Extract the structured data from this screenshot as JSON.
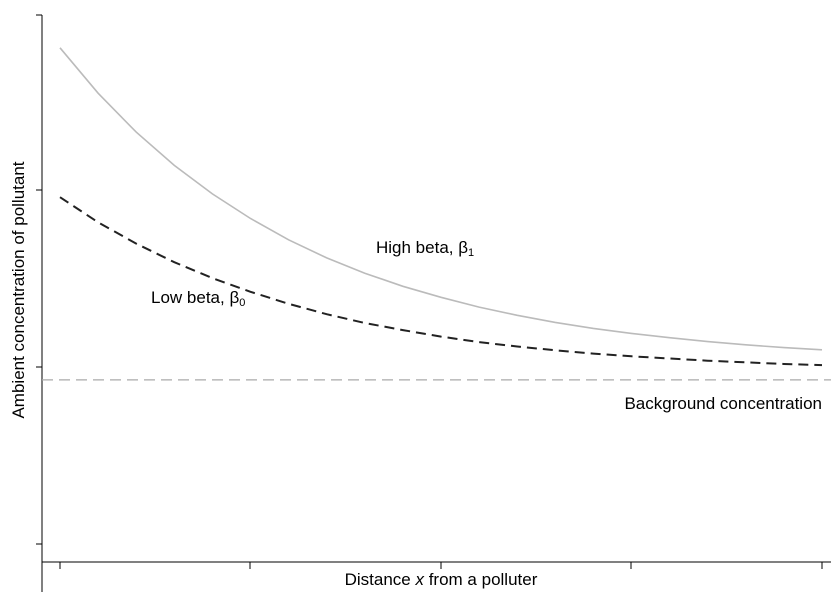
{
  "chart_data": {
    "type": "line",
    "xlabel": "Distance x from a polluter",
    "xlabel_parts": {
      "before": "Distance ",
      "var": "x",
      "after": " from a polluter"
    },
    "ylabel": "Ambient concentration of pollutant",
    "xlim": [
      0,
      1
    ],
    "ylim": [
      0,
      1
    ],
    "x_tick_labels": [],
    "y_tick_labels": [],
    "grid": false,
    "x": [
      0,
      0.05,
      0.1,
      0.15,
      0.2,
      0.25,
      0.3,
      0.35,
      0.4,
      0.45,
      0.5,
      0.55,
      0.6,
      0.65,
      0.7,
      0.75,
      0.8,
      0.85,
      0.9,
      0.95,
      1.0
    ],
    "series": [
      {
        "name": "High beta, β1",
        "label": {
          "text": "High beta, β",
          "sub": "1"
        },
        "color": "#bbbbbb",
        "style": "solid",
        "values": [
          0.94,
          0.857,
          0.786,
          0.725,
          0.673,
          0.628,
          0.589,
          0.556,
          0.528,
          0.504,
          0.484,
          0.466,
          0.451,
          0.438,
          0.427,
          0.418,
          0.41,
          0.403,
          0.397,
          0.392,
          0.388
        ]
      },
      {
        "name": "Low beta, β0",
        "label": {
          "text": "Low beta, β",
          "sub": "0"
        },
        "color": "#222222",
        "style": "dashed",
        "values": [
          0.667,
          0.621,
          0.582,
          0.548,
          0.519,
          0.494,
          0.472,
          0.453,
          0.437,
          0.424,
          0.412,
          0.402,
          0.394,
          0.387,
          0.381,
          0.376,
          0.372,
          0.368,
          0.365,
          0.362,
          0.36
        ]
      }
    ],
    "reference_lines": [
      {
        "name": "Background concentration",
        "y": 0.333,
        "color": "#aaaaaa",
        "style": "dashed"
      }
    ]
  }
}
